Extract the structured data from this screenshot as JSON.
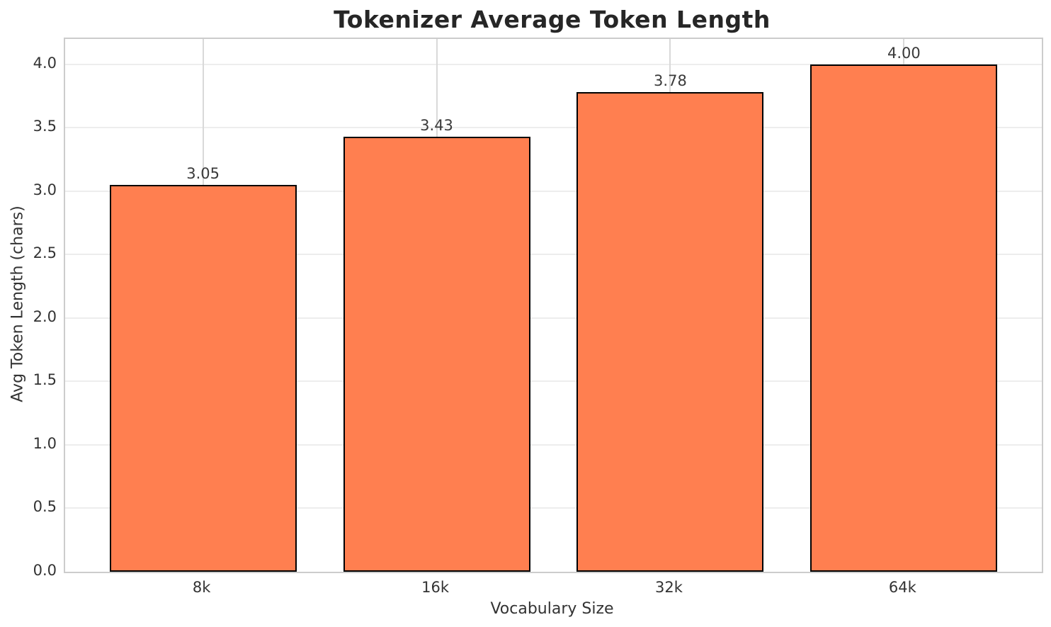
{
  "chart_data": {
    "type": "bar",
    "title": "Tokenizer Average Token Length",
    "xlabel": "Vocabulary Size",
    "ylabel": "Avg Token Length (chars)",
    "categories": [
      "8k",
      "16k",
      "32k",
      "64k"
    ],
    "values": [
      3.05,
      3.43,
      3.78,
      4.0
    ],
    "value_labels": [
      "3.05",
      "3.43",
      "3.78",
      "4.00"
    ],
    "yticks": [
      0.0,
      0.5,
      1.0,
      1.5,
      2.0,
      2.5,
      3.0,
      3.5,
      4.0
    ],
    "ytick_labels": [
      "0.0",
      "0.5",
      "1.0",
      "1.5",
      "2.0",
      "2.5",
      "3.0",
      "3.5",
      "4.0"
    ],
    "ylim": [
      0,
      4.2
    ],
    "grid": true,
    "legend_position": "none",
    "bar_color": "#FF7F50",
    "bar_edge_color": "#000000"
  }
}
